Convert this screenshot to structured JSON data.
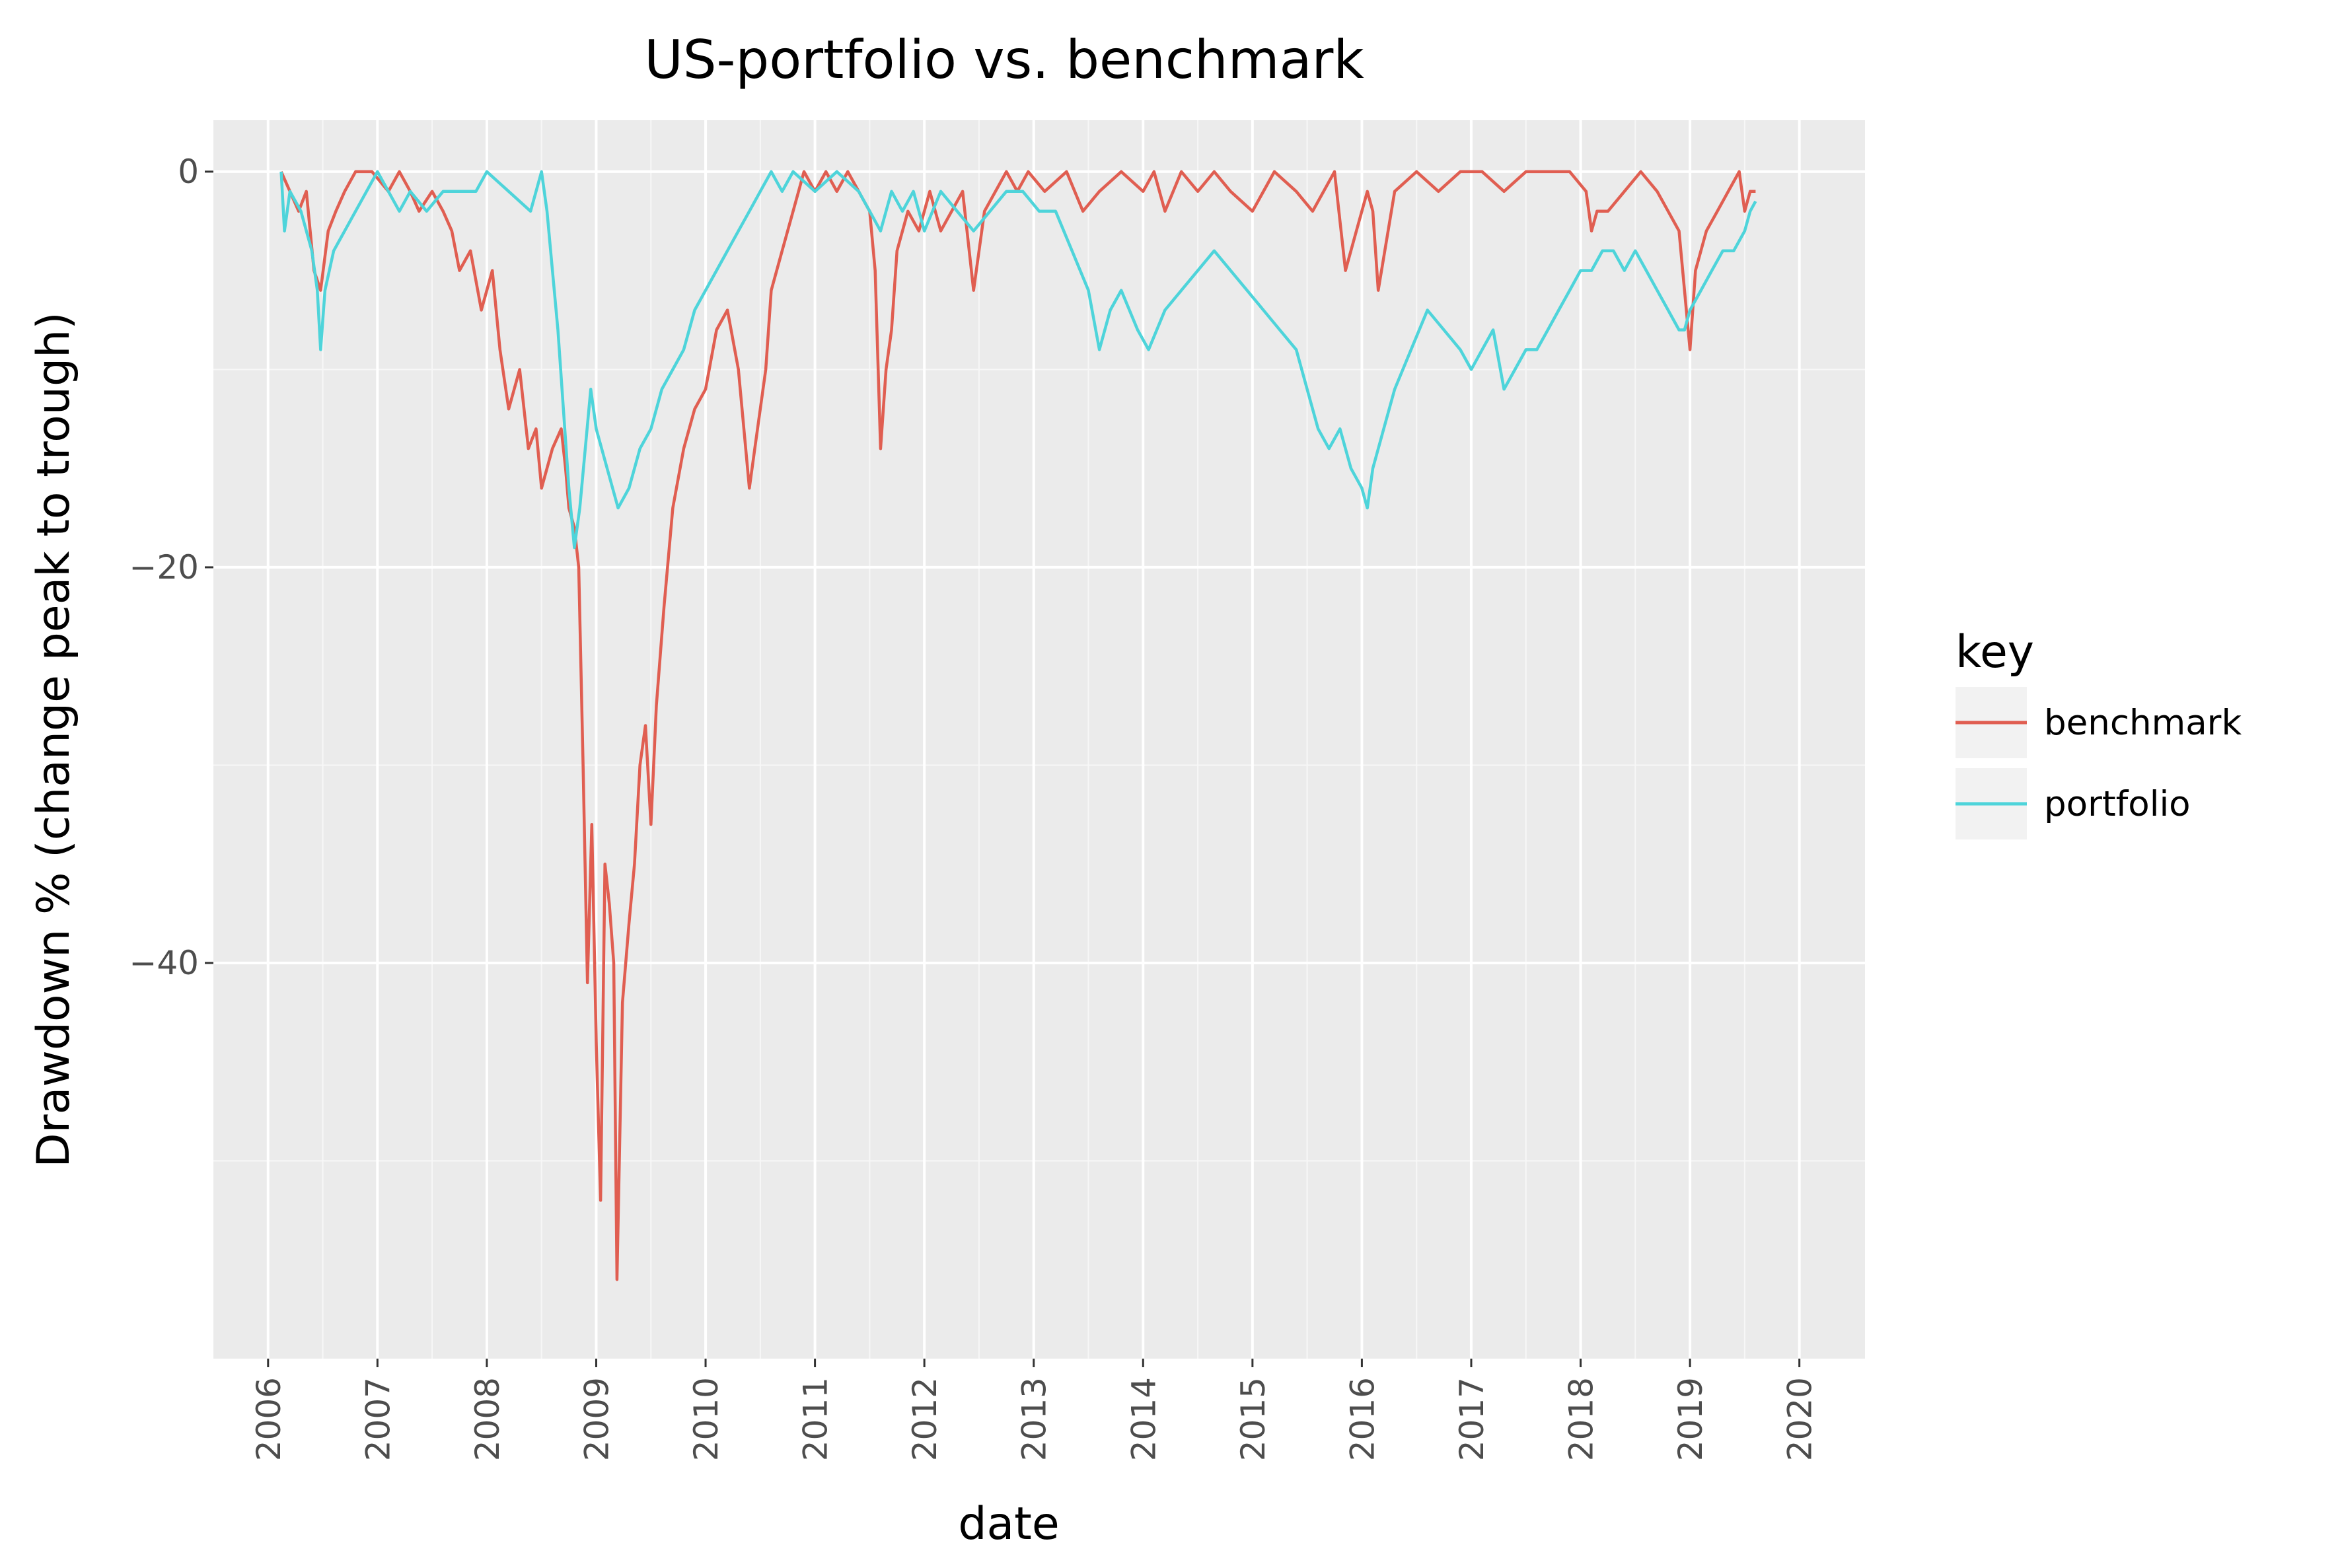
{
  "chart_data": {
    "type": "line",
    "title": "US-portfolio vs. benchmark",
    "xlabel": "date",
    "ylabel": "Drawdown % (change peak to trough)",
    "xlim": [
      2005.5,
      2020.6
    ],
    "ylim": [
      -60,
      2.6
    ],
    "x_ticks": [
      2006,
      2007,
      2008,
      2009,
      2010,
      2011,
      2012,
      2013,
      2014,
      2015,
      2016,
      2017,
      2018,
      2019,
      2020
    ],
    "y_ticks": [
      0,
      -20,
      -40
    ],
    "grid": true,
    "legend": {
      "title": "key",
      "position": "right"
    },
    "colors": {
      "benchmark": "#e05e51",
      "portfolio": "#4ed4da"
    },
    "series": [
      {
        "name": "benchmark",
        "x": [
          2006.12,
          2006.2,
          2006.28,
          2006.35,
          2006.42,
          2006.48,
          2006.55,
          2006.62,
          2006.7,
          2006.8,
          2006.95,
          2007.1,
          2007.2,
          2007.3,
          2007.38,
          2007.5,
          2007.6,
          2007.68,
          2007.75,
          2007.85,
          2007.95,
          2008.05,
          2008.12,
          2008.2,
          2008.3,
          2008.38,
          2008.45,
          2008.5,
          2008.6,
          2008.68,
          2008.72,
          2008.75,
          2008.8,
          2008.84,
          2008.88,
          2008.92,
          2008.96,
          2009.0,
          2009.04,
          2009.08,
          2009.12,
          2009.16,
          2009.19,
          2009.24,
          2009.3,
          2009.35,
          2009.4,
          2009.45,
          2009.5,
          2009.55,
          2009.62,
          2009.7,
          2009.8,
          2009.9,
          2010.0,
          2010.1,
          2010.2,
          2010.3,
          2010.35,
          2010.4,
          2010.45,
          2010.5,
          2010.55,
          2010.6,
          2010.7,
          2010.8,
          2010.9,
          2011.0,
          2011.1,
          2011.2,
          2011.3,
          2011.4,
          2011.5,
          2011.55,
          2011.6,
          2011.65,
          2011.7,
          2011.75,
          2011.85,
          2011.95,
          2012.05,
          2012.15,
          2012.25,
          2012.35,
          2012.45,
          2012.55,
          2012.65,
          2012.75,
          2012.85,
          2012.95,
          2013.1,
          2013.3,
          2013.45,
          2013.6,
          2013.8,
          2014.0,
          2014.1,
          2014.2,
          2014.35,
          2014.5,
          2014.65,
          2014.8,
          2015.0,
          2015.2,
          2015.4,
          2015.55,
          2015.65,
          2015.75,
          2015.85,
          2015.95,
          2016.05,
          2016.1,
          2016.15,
          2016.3,
          2016.5,
          2016.7,
          2016.9,
          2017.1,
          2017.3,
          2017.5,
          2017.7,
          2017.9,
          2018.05,
          2018.1,
          2018.15,
          2018.25,
          2018.4,
          2018.55,
          2018.7,
          2018.8,
          2018.9,
          2018.95,
          2019.0,
          2019.05,
          2019.15,
          2019.25,
          2019.35,
          2019.45,
          2019.5,
          2019.55,
          2019.6
        ],
        "values": [
          0,
          -1,
          -2,
          -1,
          -5,
          -6,
          -3,
          -2,
          -1,
          0,
          0,
          -1,
          0,
          -1,
          -2,
          -1,
          -2,
          -3,
          -5,
          -4,
          -7,
          -5,
          -9,
          -12,
          -10,
          -14,
          -13,
          -16,
          -14,
          -13,
          -15,
          -17,
          -18,
          -20,
          -30,
          -41,
          -33,
          -44,
          -52,
          -35,
          -37,
          -40,
          -56,
          -42,
          -38,
          -35,
          -30,
          -28,
          -33,
          -27,
          -22,
          -17,
          -14,
          -12,
          -11,
          -8,
          -7,
          -10,
          -13,
          -16,
          -14,
          -12,
          -10,
          -6,
          -4,
          -2,
          0,
          -1,
          0,
          -1,
          0,
          -1,
          -2,
          -5,
          -14,
          -10,
          -8,
          -4,
          -2,
          -3,
          -1,
          -3,
          -2,
          -1,
          -6,
          -2,
          -1,
          0,
          -1,
          0,
          -1,
          0,
          -2,
          -1,
          0,
          -1,
          0,
          -2,
          0,
          -1,
          0,
          -1,
          -2,
          0,
          -1,
          -2,
          -1,
          0,
          -5,
          -3,
          -1,
          -2,
          -6,
          -1,
          0,
          -1,
          0,
          0,
          -1,
          0,
          0,
          0,
          -1,
          -3,
          -2,
          -2,
          -1,
          0,
          -1,
          -2,
          -3,
          -6,
          -9,
          -5,
          -3,
          -2,
          -1,
          0,
          -2,
          -1,
          -1
        ]
      },
      {
        "name": "portfolio",
        "x": [
          2006.12,
          2006.15,
          2006.2,
          2006.3,
          2006.4,
          2006.45,
          2006.48,
          2006.52,
          2006.6,
          2006.7,
          2006.8,
          2006.9,
          2007.0,
          2007.1,
          2007.2,
          2007.3,
          2007.45,
          2007.6,
          2007.75,
          2007.9,
          2008.0,
          2008.2,
          2008.4,
          2008.5,
          2008.55,
          2008.6,
          2008.65,
          2008.7,
          2008.75,
          2008.8,
          2008.85,
          2008.9,
          2008.95,
          2009.0,
          2009.1,
          2009.2,
          2009.3,
          2009.4,
          2009.5,
          2009.6,
          2009.7,
          2009.8,
          2009.9,
          2010.0,
          2010.1,
          2010.2,
          2010.3,
          2010.4,
          2010.5,
          2010.6,
          2010.7,
          2010.8,
          2011.0,
          2011.2,
          2011.4,
          2011.5,
          2011.6,
          2011.7,
          2011.8,
          2011.9,
          2012.0,
          2012.15,
          2012.3,
          2012.45,
          2012.6,
          2012.75,
          2012.9,
          2013.05,
          2013.2,
          2013.35,
          2013.5,
          2013.6,
          2013.7,
          2013.8,
          2013.95,
          2014.05,
          2014.2,
          2014.35,
          2014.5,
          2014.65,
          2014.8,
          2014.95,
          2015.1,
          2015.25,
          2015.4,
          2015.5,
          2015.6,
          2015.7,
          2015.8,
          2015.9,
          2016.0,
          2016.05,
          2016.1,
          2016.2,
          2016.3,
          2016.45,
          2016.6,
          2016.75,
          2016.9,
          2017.0,
          2017.1,
          2017.2,
          2017.3,
          2017.4,
          2017.5,
          2017.6,
          2017.7,
          2017.8,
          2017.9,
          2018.0,
          2018.1,
          2018.2,
          2018.3,
          2018.4,
          2018.5,
          2018.6,
          2018.7,
          2018.8,
          2018.9,
          2018.95,
          2019.0,
          2019.1,
          2019.2,
          2019.3,
          2019.4,
          2019.5,
          2019.55,
          2019.6
        ],
        "values": [
          0,
          -3,
          -1,
          -2,
          -4,
          -6,
          -9,
          -6,
          -4,
          -3,
          -2,
          -1,
          0,
          -1,
          -2,
          -1,
          -2,
          -1,
          -1,
          -1,
          0,
          -1,
          -2,
          0,
          -2,
          -5,
          -8,
          -12,
          -16,
          -19,
          -17,
          -14,
          -11,
          -13,
          -15,
          -17,
          -16,
          -14,
          -13,
          -11,
          -10,
          -9,
          -7,
          -6,
          -5,
          -4,
          -3,
          -2,
          -1,
          0,
          -1,
          0,
          -1,
          0,
          -1,
          -2,
          -3,
          -1,
          -2,
          -1,
          -3,
          -1,
          -2,
          -3,
          -2,
          -1,
          -1,
          -2,
          -2,
          -4,
          -6,
          -9,
          -7,
          -6,
          -8,
          -9,
          -7,
          -6,
          -5,
          -4,
          -5,
          -6,
          -7,
          -8,
          -9,
          -11,
          -13,
          -14,
          -13,
          -15,
          -16,
          -17,
          -15,
          -13,
          -11,
          -9,
          -7,
          -8,
          -9,
          -10,
          -9,
          -8,
          -11,
          -10,
          -9,
          -9,
          -8,
          -7,
          -6,
          -5,
          -5,
          -4,
          -4,
          -5,
          -4,
          -5,
          -6,
          -7,
          -8,
          -8,
          -7,
          -6,
          -5,
          -4,
          -4,
          -3,
          -2,
          -1.5
        ]
      }
    ]
  }
}
